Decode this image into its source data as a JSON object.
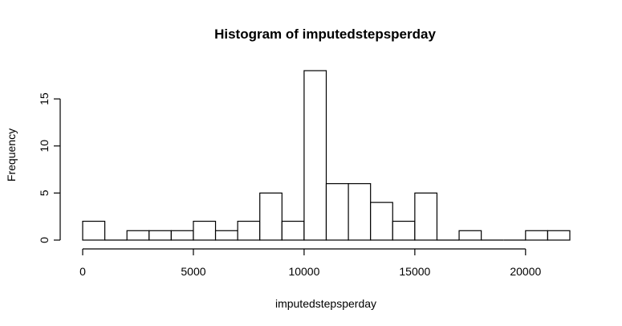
{
  "chart_data": {
    "type": "bar",
    "title": "Histogram of imputedstepsperday",
    "xlabel": "imputedstepsperday",
    "ylabel": "Frequency",
    "bin_edges": [
      0,
      1000,
      2000,
      3000,
      4000,
      5000,
      6000,
      7000,
      8000,
      9000,
      10000,
      11000,
      12000,
      13000,
      14000,
      15000,
      16000,
      17000,
      18000,
      19000,
      20000,
      21000,
      22000
    ],
    "values": [
      2,
      0,
      1,
      1,
      1,
      2,
      1,
      2,
      5,
      2,
      18,
      6,
      6,
      4,
      2,
      5,
      0,
      1,
      0,
      0,
      1,
      1
    ],
    "xlim": [
      0,
      22000
    ],
    "ylim": [
      0,
      18
    ],
    "x_ticks": [
      0,
      5000,
      10000,
      15000,
      20000
    ],
    "x_tick_labels": [
      "0",
      "5000",
      "10000",
      "15000",
      "20000"
    ],
    "y_ticks": [
      0,
      5,
      10,
      15
    ],
    "y_tick_labels": [
      "0",
      "5",
      "10",
      "15"
    ],
    "grid": false,
    "legend": "none",
    "colors": {
      "bar_fill": "#ffffff",
      "bar_stroke": "#000000"
    }
  }
}
